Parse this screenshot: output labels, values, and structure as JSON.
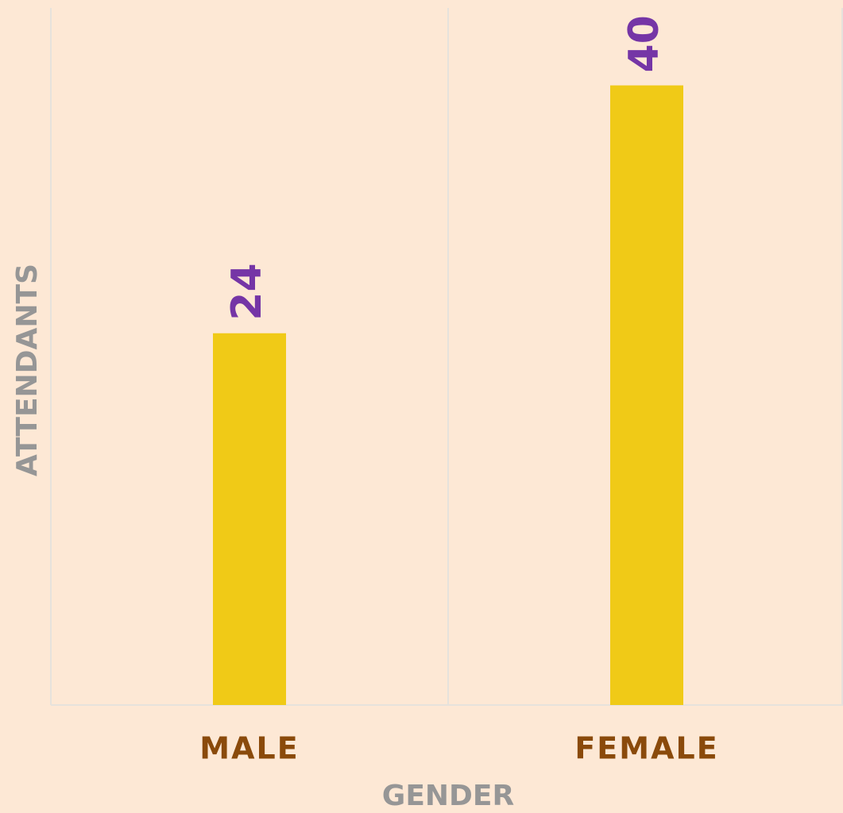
{
  "chart_data": {
    "type": "bar",
    "x_label": "GENDER",
    "y_label": "ATTENDANTS",
    "categories": [
      "MALE",
      "FEMALE"
    ],
    "values": [
      24,
      40
    ],
    "color": "#f0ca17",
    "ylim": [
      0,
      45
    ]
  }
}
